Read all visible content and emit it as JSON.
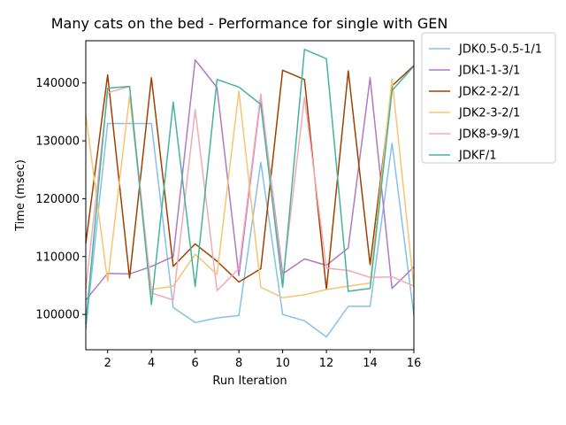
{
  "chart_data": {
    "type": "line",
    "title": "Many cats on the bed - Performance for single with GEN",
    "xlabel": "Run Iteration",
    "ylabel": "Time (msec)",
    "xlim": [
      1,
      16
    ],
    "ylim": [
      93900,
      147300
    ],
    "x_ticks": [
      2,
      4,
      6,
      8,
      10,
      12,
      14,
      16
    ],
    "y_ticks": [
      100000,
      110000,
      120000,
      130000,
      140000
    ],
    "y_tick_labels": [
      "100000",
      "110000",
      "120000",
      "130000",
      "140000"
    ],
    "grid": false,
    "legend": "outside-right",
    "x": [
      1,
      2,
      3,
      4,
      5,
      6,
      7,
      8,
      9,
      10,
      11,
      12,
      13,
      14,
      15,
      16
    ],
    "series": [
      {
        "name": "JDK0.5-0.5-1/1",
        "color": "#85c1e9",
        "values": [
          97500,
          133000,
          133000,
          133000,
          101200,
          98600,
          99400,
          99800,
          126300,
          100000,
          98900,
          96100,
          101400,
          101400,
          129600,
          99800
        ]
      },
      {
        "name": "JDK1-1-3/1",
        "color": "#af7ac5",
        "values": [
          102500,
          107100,
          107000,
          108300,
          110000,
          144000,
          139200,
          106700,
          137600,
          107000,
          109600,
          108500,
          111500,
          140900,
          104500,
          108200
        ]
      },
      {
        "name": "JDK2-2-2/1",
        "color": "#a04000",
        "values": [
          112300,
          141400,
          106300,
          140900,
          108300,
          112200,
          109200,
          105600,
          107900,
          142200,
          140600,
          104300,
          142100,
          108600,
          139500,
          143000
        ]
      },
      {
        "name": "JDK2-3-2/1",
        "color": "#f8c471",
        "values": [
          134500,
          105700,
          137700,
          104300,
          104900,
          110400,
          106900,
          138600,
          104700,
          102900,
          103400,
          104300,
          104900,
          105400,
          140700,
          104700
        ]
      },
      {
        "name": "JDK8-9-9/1",
        "color": "#f5a9b8",
        "values": [
          104400,
          138300,
          139400,
          103700,
          102500,
          135400,
          104100,
          107900,
          138100,
          105800,
          137500,
          108000,
          107600,
          106400,
          106500,
          104900
        ]
      },
      {
        "name": "JDKF/1",
        "color": "#45b39d",
        "values": [
          98400,
          139100,
          139400,
          101700,
          136700,
          104800,
          140600,
          139300,
          136300,
          104700,
          145800,
          144200,
          104000,
          104500,
          138700,
          142900
        ]
      }
    ]
  }
}
